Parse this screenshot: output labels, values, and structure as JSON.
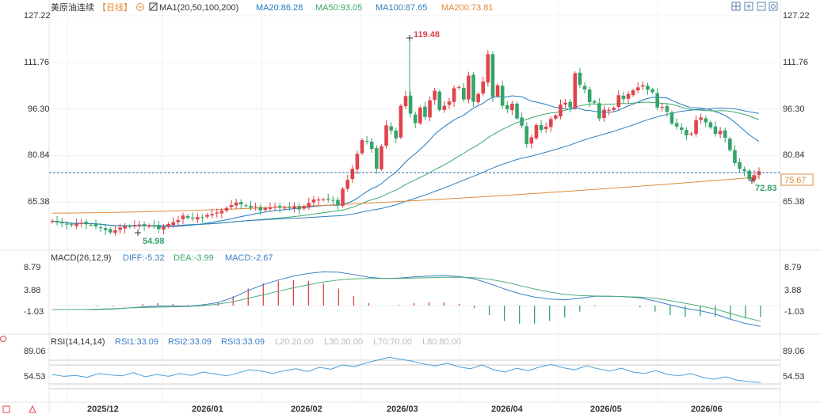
{
  "header": {
    "instrument": "美原油连续",
    "period": "【日线】",
    "ma_title": "MA1(20,50,100,200)",
    "ma20": "MA20:86.28",
    "ma50": "MA50:93.05",
    "ma100": "MA100:87.65",
    "ma200": "MA200:73.81"
  },
  "toolbar": {
    "icons": [
      "crosshair-icon",
      "zoom-in-icon",
      "zoom-out-icon",
      "settings-icon"
    ]
  },
  "colors": {
    "up": "#e1434c",
    "down": "#35a46a",
    "ma20": "#1e7ac2",
    "ma50": "#3ca86a",
    "ma100": "#2f7fbf",
    "ma200": "#e08b3c",
    "last_line": "#2f6fb0",
    "diff": "#3a7fc8",
    "dea": "#4fae78",
    "rsi": "#4a9fd8"
  },
  "price_axis": {
    "ticks": [
      "127.22",
      "111.76",
      "96.30",
      "80.84",
      "65.38"
    ],
    "last_price": "75.67"
  },
  "annotations": {
    "high": "119.48",
    "low_early": "54.98",
    "low_recent": "72.83"
  },
  "macd": {
    "title": "MACD(26,12,9)",
    "diff": "DIFF:-5.32",
    "dea": "DEA:-3.99",
    "macd": "MACD:-2.67",
    "ticks": [
      "8.79",
      "3.88",
      "-1.03"
    ]
  },
  "rsi": {
    "title": "RSI(14,14,14)",
    "rsi1": "RSI1:33.09",
    "rsi2": "RSI2:33.09",
    "rsi3": "RSI3:33.09",
    "l20": "L20:20.00",
    "l30": "L30:30.00",
    "l70": "L70:70.00",
    "l80": "L80:80.00",
    "ticks": [
      "89.06",
      "54.53"
    ]
  },
  "date_axis": [
    "2025/12",
    "2026/01",
    "2026/02",
    "2026/03",
    "2026/04",
    "2026/05",
    "2026/06"
  ],
  "chart_data": {
    "type": "candlestick",
    "y_range": [
      57.65,
      127.22
    ],
    "series": [
      {
        "name": "MA20",
        "value": 86.28
      },
      {
        "name": "MA50",
        "value": 93.05
      },
      {
        "name": "MA100",
        "value": 87.65
      },
      {
        "name": "MA200",
        "value": 73.81
      }
    ],
    "close_path": [
      59.2,
      58.7,
      58.4,
      58.0,
      57.8,
      58.3,
      58.6,
      58.1,
      57.9,
      57.4,
      56.8,
      56.2,
      55.4,
      56.1,
      57.0,
      57.5,
      57.3,
      57.9,
      58.0,
      57.6,
      57.8,
      57.6,
      56.5,
      57.2,
      58.2,
      58.8,
      59.5,
      61.0,
      60.2,
      60.0,
      60.5,
      60.3,
      61.2,
      61.5,
      62.0,
      62.6,
      63.5,
      64.5,
      65.3,
      64.7,
      64.2,
      63.6,
      64.0,
      62.7,
      63.5,
      63.7,
      63.9,
      63.6,
      63.6,
      63.6,
      64.1,
      63.0,
      64.0,
      65.2,
      66.3,
      66.3,
      66.3,
      66.3,
      66.0,
      64.5,
      69.9,
      72.8,
      76.5,
      81.5,
      86.0,
      85.5,
      83.1,
      76.5,
      84.0,
      90.9,
      89.2,
      86.6,
      97.4,
      100.6,
      94.8,
      91.6,
      96.8,
      93.7,
      99.2,
      102.4,
      96.0,
      97.4,
      98.8,
      103.2,
      103.6,
      99.5,
      107.4,
      98.7,
      101.3,
      105.4,
      114.5,
      100.3,
      104.2,
      97.4,
      96.3,
      98.1,
      93.2,
      90.8,
      84.7,
      86.9,
      91.0,
      89.4,
      90.5,
      93.0,
      94.2,
      97.8,
      98.4,
      96.8,
      108.2,
      104.3,
      102.8,
      98.6,
      98.4,
      93.2,
      96.1,
      96.0,
      96.7,
      100.9,
      99.6,
      101.3,
      102.5,
      103.5,
      104.2,
      102.7,
      101.9,
      96.8,
      97.0,
      95.4,
      91.5,
      90.5,
      89.4,
      87.6,
      88.2,
      92.6,
      93.5,
      91.9,
      90.2,
      88.1,
      89.1,
      86.8,
      82.7,
      78.4,
      76.5,
      75.7,
      73.0,
      74.4,
      75.67
    ],
    "macd_diff_path": [
      -1.0,
      -1.0,
      -1.0,
      -1.0,
      -0.9,
      -0.6,
      -0.3,
      -0.1,
      -0.1,
      -0.1,
      0.2,
      0.8,
      2.1,
      3.9,
      5.4,
      6.6,
      7.6,
      8.3,
      8.7,
      8.6,
      8.0,
      7.3,
      7.0,
      7.1,
      7.4,
      7.6,
      7.7,
      7.5,
      6.9,
      5.7,
      4.3,
      3.1,
      2.2,
      1.7,
      1.5,
      1.9,
      2.4,
      2.4,
      2.3,
      2.0,
      1.2,
      0.2,
      -0.7,
      -1.3,
      -2.2,
      -3.5,
      -4.6,
      -5.32
    ],
    "macd_dea_path": [
      -1.0,
      -1.0,
      -1.0,
      -0.9,
      -0.8,
      -0.6,
      -0.5,
      -0.4,
      -0.3,
      -0.2,
      0.0,
      0.4,
      1.0,
      1.9,
      2.8,
      3.7,
      4.6,
      5.4,
      6.1,
      6.6,
      6.9,
      7.0,
      7.0,
      7.0,
      7.1,
      7.2,
      7.3,
      7.3,
      7.2,
      6.8,
      6.1,
      5.2,
      4.3,
      3.5,
      2.9,
      2.6,
      2.5,
      2.4,
      2.3,
      2.2,
      1.9,
      1.3,
      0.6,
      -0.1,
      -0.9,
      -2.0,
      -3.1,
      -3.99
    ],
    "rsi_path": [
      50,
      46,
      48,
      44,
      52,
      49,
      47,
      54,
      45,
      50,
      46,
      52,
      48,
      55,
      51,
      47,
      53,
      60,
      57,
      52,
      58,
      62,
      56,
      65,
      61,
      70,
      66,
      74,
      80,
      86,
      82,
      78,
      72,
      68,
      74,
      66,
      62,
      70,
      60,
      55,
      63,
      58,
      66,
      71,
      64,
      60,
      68,
      62,
      57,
      63,
      55,
      52,
      58,
      50,
      47,
      52,
      44,
      40,
      45,
      38,
      35,
      33.09
    ]
  }
}
